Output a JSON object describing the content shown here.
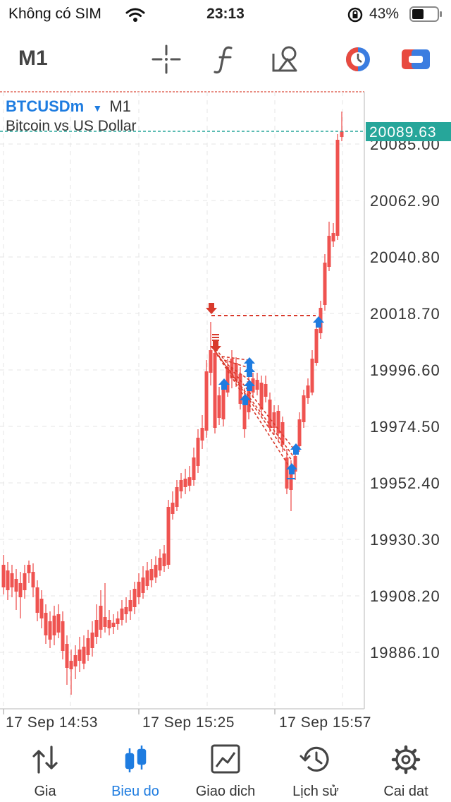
{
  "status_bar": {
    "carrier": "Không có SIM",
    "time": "23:13",
    "battery": "43%"
  },
  "toolbar": {
    "timeframe": "M1",
    "icons": [
      "crosshair-icon",
      "function-icon",
      "objects-icon",
      "one-click-trading-icon",
      "account-icon"
    ]
  },
  "symbol": {
    "name": "BTCUSDm",
    "timeframe": "M1",
    "description": "Bitcoin vs US Dollar"
  },
  "price_axis": {
    "current_price": "20089.63",
    "labels": [
      "20085.00",
      "20062.90",
      "20040.80",
      "20018.70",
      "19996.60",
      "19974.50",
      "19952.40",
      "19930.30",
      "19908.20",
      "19886.10"
    ]
  },
  "time_axis": {
    "labels": [
      "17 Sep 14:53",
      "17 Sep 15:25",
      "17 Sep 15:57"
    ]
  },
  "colors": {
    "bull": "#26a69a",
    "bear": "#ef5350",
    "accent": "#1e7ce0",
    "marker": "#d83a2c",
    "buy_arrow": "#1e7ce0"
  },
  "tabs": [
    {
      "label": "Gia",
      "icon": "quotes-icon",
      "active": false
    },
    {
      "label": "Bieu do",
      "icon": "chart-icon",
      "active": true
    },
    {
      "label": "Giao dich",
      "icon": "trade-icon",
      "active": false
    },
    {
      "label": "Lịch sử",
      "icon": "history-icon",
      "active": false
    },
    {
      "label": "Cai dat",
      "icon": "settings-icon",
      "active": false
    }
  ]
}
